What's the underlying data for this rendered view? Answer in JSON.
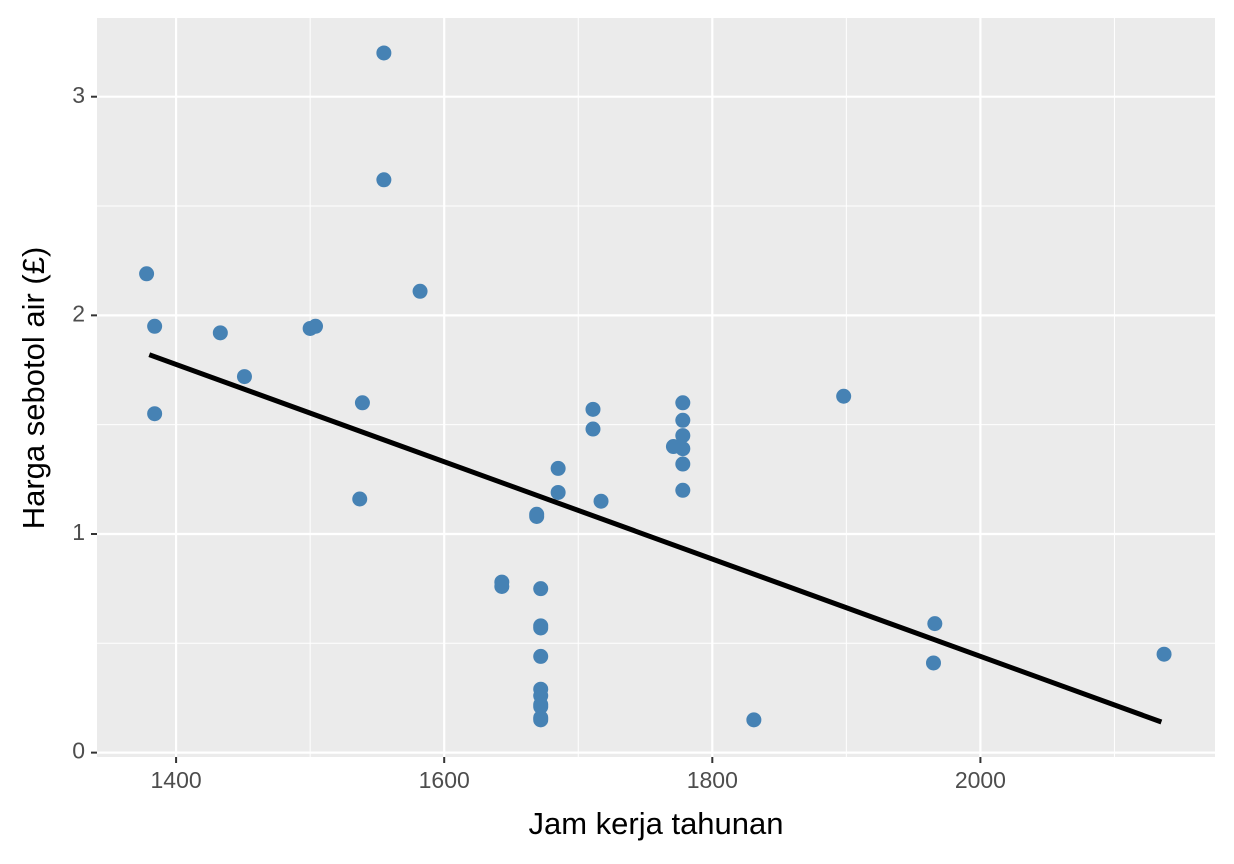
{
  "chart_data": {
    "type": "scatter",
    "x_label": "Jam kerja tahunan",
    "y_label": "Harga sebotol air (£)",
    "x": [
      1378,
      1384,
      1384,
      1433,
      1451,
      1500,
      1504,
      1539,
      1537,
      1555,
      1555,
      1582,
      1643,
      1643,
      1669,
      1669,
      1672,
      1672,
      1672,
      1672,
      1672,
      1672,
      1672,
      1672,
      1672,
      1672,
      1685,
      1685,
      1711,
      1711,
      1717,
      1771,
      1778,
      1778,
      1778,
      1778,
      1778,
      1778,
      1831,
      1898,
      1966,
      1965,
      2137
    ],
    "values": [
      2.19,
      1.95,
      1.55,
      1.92,
      1.72,
      1.94,
      1.95,
      1.6,
      1.16,
      3.2,
      2.62,
      2.11,
      0.78,
      0.76,
      1.09,
      1.08,
      0.75,
      0.58,
      0.57,
      0.44,
      0.29,
      0.26,
      0.22,
      0.21,
      0.16,
      0.15,
      1.3,
      1.19,
      1.57,
      1.48,
      1.15,
      1.4,
      1.6,
      1.52,
      1.45,
      1.39,
      1.32,
      1.2,
      0.15,
      1.63,
      0.59,
      0.41,
      0.45
    ],
    "color": "#4682b4",
    "trend_line": {
      "x": [
        1380,
        2135
      ],
      "y": [
        1.82,
        0.14
      ],
      "color": "#000000"
    },
    "xlim": [
      1341,
      2175
    ],
    "ylim": [
      -0.02,
      3.36
    ],
    "xticks": [
      1400,
      1600,
      1800,
      2000
    ],
    "yticks": [
      0,
      1,
      2,
      3
    ],
    "x_minor_ticks": [
      1500,
      1700,
      1900,
      2100
    ],
    "y_minor_ticks": [
      0.5,
      1.5,
      2.5
    ],
    "grid": true,
    "panel_color": "#ebebeb"
  }
}
